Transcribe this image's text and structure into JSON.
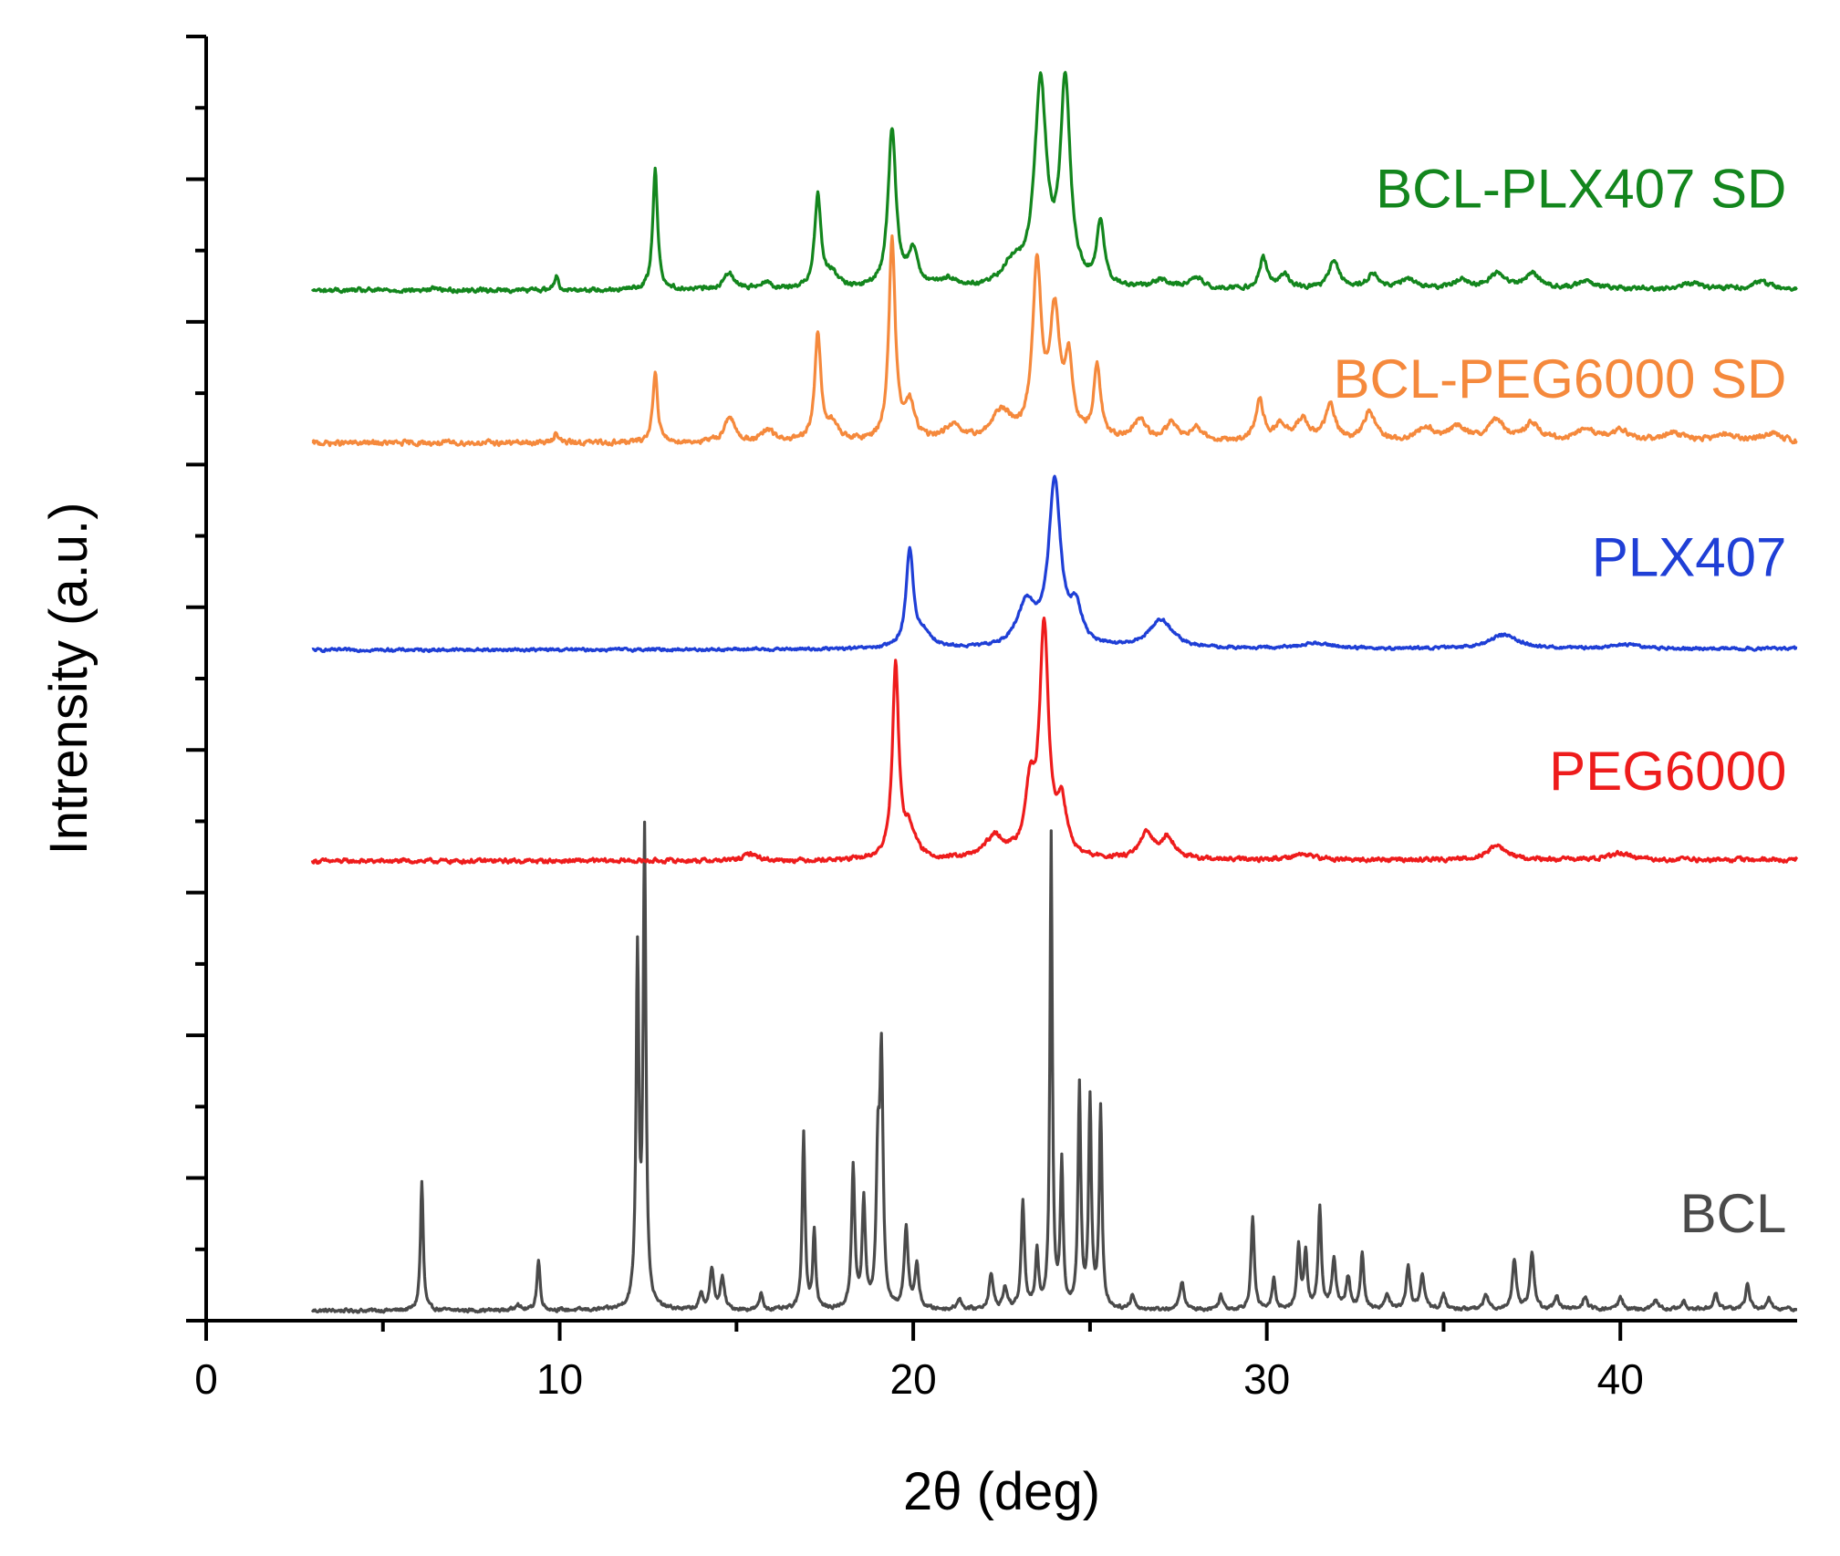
{
  "chart_data": {
    "type": "line",
    "title": "",
    "xlabel": "2θ (deg)",
    "ylabel": "Intrensity (a.u.)",
    "xlim": [
      0,
      45
    ],
    "ylim": [
      0,
      9
    ],
    "x_ticks": [
      0,
      10,
      20,
      30,
      40
    ],
    "x_tick_labels": [
      "0",
      "10",
      "20",
      "30",
      "40"
    ],
    "x_minor_ticks": [
      5,
      15,
      25,
      35
    ],
    "y_ticks": [
      0,
      1,
      2,
      3,
      4,
      5,
      6,
      7,
      8,
      9
    ],
    "grid": false,
    "legend": "inline labels at right end of each trace",
    "series": [
      {
        "name": "BCL",
        "label": "BCL",
        "color": "#4a4a4a",
        "baseline": 0.07,
        "noise": 0.01,
        "label_x": 44.7,
        "label_y": 0.62,
        "peaks": [
          [
            6.1,
            0.9,
            0.07
          ],
          [
            8.8,
            0.05,
            0.1
          ],
          [
            9.4,
            0.35,
            0.08
          ],
          [
            12.2,
            2.45,
            0.07
          ],
          [
            12.4,
            3.3,
            0.07
          ],
          [
            14.0,
            0.1,
            0.1
          ],
          [
            14.3,
            0.28,
            0.1
          ],
          [
            14.6,
            0.22,
            0.1
          ],
          [
            15.7,
            0.12,
            0.08
          ],
          [
            16.9,
            1.25,
            0.07
          ],
          [
            17.2,
            0.55,
            0.07
          ],
          [
            18.3,
            1.0,
            0.08
          ],
          [
            18.6,
            0.75,
            0.08
          ],
          [
            19.0,
            1.0,
            0.08
          ],
          [
            19.1,
            1.7,
            0.08
          ],
          [
            19.8,
            0.55,
            0.1
          ],
          [
            20.1,
            0.3,
            0.1
          ],
          [
            21.3,
            0.08,
            0.1
          ],
          [
            22.2,
            0.25,
            0.1
          ],
          [
            22.6,
            0.15,
            0.1
          ],
          [
            23.1,
            0.75,
            0.08
          ],
          [
            23.5,
            0.4,
            0.08
          ],
          [
            23.9,
            3.3,
            0.06
          ],
          [
            24.2,
            1.0,
            0.07
          ],
          [
            24.7,
            1.55,
            0.07
          ],
          [
            25.0,
            1.45,
            0.07
          ],
          [
            25.3,
            1.4,
            0.07
          ],
          [
            26.2,
            0.1,
            0.1
          ],
          [
            27.6,
            0.2,
            0.1
          ],
          [
            28.7,
            0.1,
            0.1
          ],
          [
            29.6,
            0.65,
            0.08
          ],
          [
            30.2,
            0.22,
            0.08
          ],
          [
            30.9,
            0.45,
            0.08
          ],
          [
            31.1,
            0.4,
            0.08
          ],
          [
            31.5,
            0.7,
            0.08
          ],
          [
            31.9,
            0.35,
            0.1
          ],
          [
            32.3,
            0.22,
            0.1
          ],
          [
            32.7,
            0.4,
            0.08
          ],
          [
            33.4,
            0.12,
            0.1
          ],
          [
            34.0,
            0.3,
            0.1
          ],
          [
            34.4,
            0.25,
            0.1
          ],
          [
            35.0,
            0.1,
            0.1
          ],
          [
            36.2,
            0.1,
            0.12
          ],
          [
            37.0,
            0.35,
            0.1
          ],
          [
            37.5,
            0.4,
            0.1
          ],
          [
            38.2,
            0.1,
            0.1
          ],
          [
            39.0,
            0.08,
            0.12
          ],
          [
            40.0,
            0.08,
            0.12
          ],
          [
            41.0,
            0.06,
            0.12
          ],
          [
            41.8,
            0.05,
            0.12
          ],
          [
            42.7,
            0.12,
            0.1
          ],
          [
            43.6,
            0.18,
            0.1
          ],
          [
            44.2,
            0.08,
            0.1
          ]
        ]
      },
      {
        "name": "PEG6000",
        "label": "PEG6000",
        "color": "#ee1c1c",
        "baseline": 3.22,
        "noise": 0.012,
        "label_x": 44.7,
        "label_y": 3.72,
        "peaks": [
          [
            15.4,
            0.05,
            0.3
          ],
          [
            19.5,
            1.35,
            0.16
          ],
          [
            19.9,
            0.2,
            0.3
          ],
          [
            22.3,
            0.15,
            0.5
          ],
          [
            23.3,
            0.45,
            0.25
          ],
          [
            23.7,
            1.6,
            0.22
          ],
          [
            24.2,
            0.35,
            0.25
          ],
          [
            26.6,
            0.17,
            0.35
          ],
          [
            27.2,
            0.15,
            0.35
          ],
          [
            31.0,
            0.04,
            0.6
          ],
          [
            36.5,
            0.1,
            0.5
          ],
          [
            40.0,
            0.05,
            0.5
          ]
        ]
      },
      {
        "name": "PLX407",
        "label": "PLX407",
        "color": "#1f3fd6",
        "baseline": 4.7,
        "noise": 0.008,
        "label_x": 44.7,
        "label_y": 5.22,
        "peaks": [
          [
            19.9,
            0.68,
            0.18
          ],
          [
            20.3,
            0.1,
            0.4
          ],
          [
            23.2,
            0.3,
            0.45
          ],
          [
            24.0,
            1.15,
            0.3
          ],
          [
            24.6,
            0.25,
            0.3
          ],
          [
            27.0,
            0.2,
            0.6
          ],
          [
            31.4,
            0.04,
            0.8
          ],
          [
            36.7,
            0.1,
            0.7
          ],
          [
            40.2,
            0.03,
            0.6
          ]
        ]
      },
      {
        "name": "BCL-PEG6000 SD",
        "label": "BCL-PEG6000 SD",
        "color": "#f5893c",
        "baseline": 6.15,
        "noise": 0.014,
        "label_x": 44.7,
        "label_y": 6.47,
        "peaks": [
          [
            9.9,
            0.08,
            0.1
          ],
          [
            12.7,
            0.5,
            0.12
          ],
          [
            14.8,
            0.18,
            0.25
          ],
          [
            15.9,
            0.08,
            0.3
          ],
          [
            17.3,
            0.75,
            0.15
          ],
          [
            17.7,
            0.12,
            0.3
          ],
          [
            19.4,
            1.4,
            0.16
          ],
          [
            19.9,
            0.25,
            0.25
          ],
          [
            21.1,
            0.1,
            0.4
          ],
          [
            22.5,
            0.2,
            0.5
          ],
          [
            23.5,
            1.2,
            0.22
          ],
          [
            24.0,
            0.85,
            0.25
          ],
          [
            24.4,
            0.5,
            0.2
          ],
          [
            25.2,
            0.5,
            0.18
          ],
          [
            26.4,
            0.15,
            0.3
          ],
          [
            27.3,
            0.12,
            0.3
          ],
          [
            28.0,
            0.1,
            0.3
          ],
          [
            29.8,
            0.28,
            0.2
          ],
          [
            30.4,
            0.12,
            0.25
          ],
          [
            31.0,
            0.15,
            0.3
          ],
          [
            31.8,
            0.25,
            0.25
          ],
          [
            32.9,
            0.2,
            0.3
          ],
          [
            34.5,
            0.1,
            0.4
          ],
          [
            35.4,
            0.1,
            0.4
          ],
          [
            36.5,
            0.14,
            0.4
          ],
          [
            37.5,
            0.12,
            0.4
          ],
          [
            39.0,
            0.08,
            0.5
          ],
          [
            40.0,
            0.08,
            0.4
          ],
          [
            41.5,
            0.06,
            0.5
          ],
          [
            43.0,
            0.05,
            0.5
          ],
          [
            44.3,
            0.06,
            0.4
          ]
        ]
      },
      {
        "name": "BCL-PLX407 SD",
        "label": "BCL-PLX407 SD",
        "color": "#13861d",
        "baseline": 7.22,
        "noise": 0.012,
        "label_x": 44.7,
        "label_y": 7.8,
        "peaks": [
          [
            6.5,
            0.02,
            0.15
          ],
          [
            9.9,
            0.1,
            0.1
          ],
          [
            12.7,
            0.85,
            0.12
          ],
          [
            14.8,
            0.12,
            0.25
          ],
          [
            15.8,
            0.05,
            0.3
          ],
          [
            17.3,
            0.65,
            0.16
          ],
          [
            17.7,
            0.1,
            0.3
          ],
          [
            19.4,
            1.1,
            0.2
          ],
          [
            20.0,
            0.25,
            0.25
          ],
          [
            21.0,
            0.06,
            0.4
          ],
          [
            22.8,
            0.15,
            0.5
          ],
          [
            23.6,
            1.4,
            0.3
          ],
          [
            24.3,
            1.4,
            0.25
          ],
          [
            25.3,
            0.45,
            0.18
          ],
          [
            27.0,
            0.06,
            0.4
          ],
          [
            28.0,
            0.08,
            0.3
          ],
          [
            29.9,
            0.22,
            0.18
          ],
          [
            30.5,
            0.1,
            0.25
          ],
          [
            31.9,
            0.2,
            0.25
          ],
          [
            33.0,
            0.1,
            0.3
          ],
          [
            34.0,
            0.06,
            0.4
          ],
          [
            35.5,
            0.06,
            0.4
          ],
          [
            36.5,
            0.1,
            0.4
          ],
          [
            37.5,
            0.1,
            0.4
          ],
          [
            39.0,
            0.05,
            0.5
          ],
          [
            42.0,
            0.04,
            0.5
          ],
          [
            44.0,
            0.05,
            0.4
          ]
        ]
      }
    ]
  }
}
